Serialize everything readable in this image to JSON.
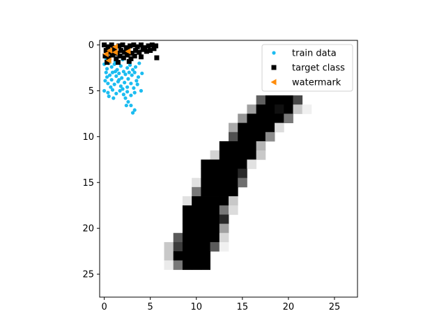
{
  "chart_data": {
    "type": "scatter",
    "background": "image",
    "image": {
      "width": 28,
      "height": 28,
      "description_of_cells": "row, start_col, [gray values 0..255]",
      "rows": [
        {
          "row": 6,
          "start": 17,
          "values": [
            96,
            0,
            0,
            0,
            72
          ]
        },
        {
          "row": 7,
          "start": 16,
          "values": [
            160,
            0,
            0,
            16,
            0,
            200,
            240
          ]
        },
        {
          "row": 8,
          "start": 15,
          "values": [
            150,
            0,
            0,
            0,
            0,
            120
          ]
        },
        {
          "row": 9,
          "start": 14,
          "values": [
            170,
            0,
            0,
            0,
            0,
            220
          ]
        },
        {
          "row": 10,
          "start": 14,
          "values": [
            80,
            0,
            0,
            0,
            140
          ]
        },
        {
          "row": 11,
          "start": 13,
          "values": [
            0,
            0,
            0,
            0,
            180
          ]
        },
        {
          "row": 12,
          "start": 12,
          "values": [
            210,
            0,
            0,
            0,
            0,
            200
          ]
        },
        {
          "row": 13,
          "start": 11,
          "values": [
            0,
            0,
            0,
            0,
            0,
            225
          ]
        },
        {
          "row": 14,
          "start": 11,
          "values": [
            0,
            0,
            0,
            0,
            40
          ]
        },
        {
          "row": 15,
          "start": 10,
          "values": [
            225,
            0,
            0,
            0,
            0,
            110
          ]
        },
        {
          "row": 16,
          "start": 10,
          "values": [
            120,
            0,
            0,
            0,
            0
          ]
        },
        {
          "row": 17,
          "start": 9,
          "values": [
            225,
            0,
            0,
            0,
            0,
            200
          ]
        },
        {
          "row": 18,
          "start": 9,
          "values": [
            0,
            0,
            0,
            0,
            120,
            220
          ]
        },
        {
          "row": 19,
          "start": 9,
          "values": [
            0,
            0,
            0,
            0,
            40
          ]
        },
        {
          "row": 20,
          "start": 9,
          "values": [
            0,
            0,
            0,
            0,
            160
          ]
        },
        {
          "row": 21,
          "start": 8,
          "values": [
            90,
            0,
            0,
            0,
            0,
            215
          ]
        },
        {
          "row": 22,
          "start": 7,
          "values": [
            200,
            60,
            0,
            0,
            0,
            90,
            240
          ]
        },
        {
          "row": 23,
          "start": 7,
          "values": [
            200,
            0,
            0,
            0,
            0
          ]
        },
        {
          "row": 24,
          "start": 7,
          "values": [
            235,
            120,
            0,
            0,
            0
          ]
        }
      ]
    },
    "series": [
      {
        "name": "train data",
        "marker": "circle",
        "color": "#1cbcf0",
        "points": [
          [
            0.0,
            2.1
          ],
          [
            0.3,
            2.6
          ],
          [
            0.5,
            2.0
          ],
          [
            0.8,
            2.4
          ],
          [
            1.1,
            2.1
          ],
          [
            1.4,
            2.7
          ],
          [
            1.8,
            2.3
          ],
          [
            2.1,
            2.9
          ],
          [
            2.5,
            2.5
          ],
          [
            2.8,
            2.2
          ],
          [
            3.1,
            2.7
          ],
          [
            3.4,
            2.4
          ],
          [
            3.8,
            2.0
          ],
          [
            0.2,
            3.0
          ],
          [
            0.6,
            3.3
          ],
          [
            0.9,
            3.0
          ],
          [
            1.3,
            3.4
          ],
          [
            1.6,
            3.1
          ],
          [
            1.9,
            3.6
          ],
          [
            2.3,
            3.2
          ],
          [
            2.6,
            3.7
          ],
          [
            3.0,
            3.3
          ],
          [
            3.3,
            3.0
          ],
          [
            3.7,
            3.5
          ],
          [
            4.1,
            3.1
          ],
          [
            0.1,
            3.9
          ],
          [
            0.4,
            4.2
          ],
          [
            0.8,
            3.8
          ],
          [
            1.1,
            4.3
          ],
          [
            1.5,
            4.0
          ],
          [
            1.8,
            4.5
          ],
          [
            2.2,
            4.1
          ],
          [
            2.5,
            4.6
          ],
          [
            2.9,
            4.2
          ],
          [
            3.2,
            4.7
          ],
          [
            3.6,
            4.3
          ],
          [
            0.0,
            5.0
          ],
          [
            0.4,
            5.2
          ],
          [
            0.9,
            4.9
          ],
          [
            1.3,
            5.3
          ],
          [
            1.7,
            5.0
          ],
          [
            2.1,
            5.4
          ],
          [
            2.5,
            5.1
          ],
          [
            2.9,
            5.5
          ],
          [
            3.3,
            5.2
          ],
          [
            4.0,
            5.0
          ],
          [
            0.5,
            5.6
          ],
          [
            1.0,
            5.8
          ],
          [
            2.3,
            5.8
          ],
          [
            2.6,
            6.2
          ],
          [
            2.4,
            6.6
          ],
          [
            2.9,
            6.6
          ],
          [
            3.3,
            7.1
          ],
          [
            3.1,
            7.4
          ],
          [
            0.2,
            1.5
          ],
          [
            1.2,
            1.8
          ],
          [
            2.0,
            1.6
          ],
          [
            0.7,
            4.6
          ],
          [
            1.6,
            3.8
          ],
          [
            3.5,
            3.9
          ],
          [
            2.0,
            4.8
          ],
          [
            1.2,
            2.9
          ],
          [
            2.7,
            3.0
          ],
          [
            0.3,
            3.5
          ]
        ]
      },
      {
        "name": "target class",
        "marker": "square",
        "color": "#000000",
        "points": [
          [
            0.0,
            0.0
          ],
          [
            0.4,
            0.2
          ],
          [
            0.8,
            0.0
          ],
          [
            1.2,
            0.3
          ],
          [
            1.6,
            0.1
          ],
          [
            2.0,
            0.0
          ],
          [
            2.4,
            0.3
          ],
          [
            2.8,
            0.1
          ],
          [
            3.2,
            0.0
          ],
          [
            3.6,
            0.2
          ],
          [
            4.0,
            0.0
          ],
          [
            4.4,
            0.3
          ],
          [
            4.8,
            0.1
          ],
          [
            5.2,
            0.0
          ],
          [
            5.6,
            0.1
          ],
          [
            0.2,
            0.6
          ],
          [
            0.6,
            0.8
          ],
          [
            1.0,
            0.5
          ],
          [
            1.4,
            0.9
          ],
          [
            1.8,
            0.6
          ],
          [
            2.2,
            0.8
          ],
          [
            2.6,
            0.5
          ],
          [
            3.0,
            0.9
          ],
          [
            3.4,
            0.6
          ],
          [
            3.8,
            0.8
          ],
          [
            4.2,
            0.5
          ],
          [
            4.6,
            0.7
          ],
          [
            5.0,
            0.6
          ],
          [
            5.4,
            0.4
          ],
          [
            0.1,
            1.2
          ],
          [
            0.5,
            1.4
          ],
          [
            0.9,
            1.1
          ],
          [
            1.3,
            1.5
          ],
          [
            1.7,
            1.2
          ],
          [
            2.1,
            1.4
          ],
          [
            2.5,
            1.1
          ],
          [
            2.9,
            1.5
          ],
          [
            3.3,
            1.2
          ],
          [
            4.0,
            1.3
          ],
          [
            5.7,
            1.4
          ],
          [
            0.3,
            1.9
          ],
          [
            1.5,
            1.9
          ],
          [
            2.7,
            1.8
          ]
        ]
      },
      {
        "name": "watermark",
        "marker": "triangle-left",
        "color": "#ff8c0a",
        "points": [
          [
            0.6,
            0.6
          ],
          [
            1.2,
            0.2
          ],
          [
            1.2,
            0.8
          ],
          [
            2.6,
            0.7
          ],
          [
            0.5,
            1.7
          ],
          [
            0.2,
            1.0
          ]
        ]
      }
    ],
    "xlim": [
      -0.5,
      27.5
    ],
    "ylim": [
      27.5,
      -0.5
    ],
    "xticks": [
      0,
      5,
      10,
      15,
      20,
      25
    ],
    "yticks": [
      0,
      5,
      10,
      15,
      20,
      25
    ],
    "xlabel": "",
    "ylabel": "",
    "title": "",
    "grid": false,
    "legend": {
      "placement": "upper-right",
      "entries": [
        "train data",
        "target class",
        "watermark"
      ]
    }
  }
}
